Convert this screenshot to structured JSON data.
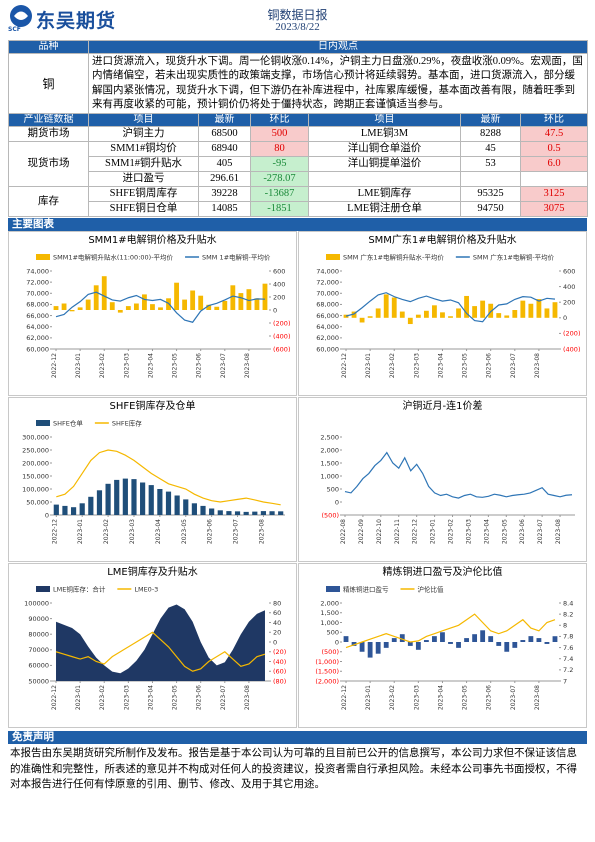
{
  "header": {
    "logo_text": "东吴期货",
    "logo_sub": "SCF",
    "title": "铜数据日报",
    "date": "2023/8/22"
  },
  "view_table": {
    "header": [
      "品种",
      "日内观点"
    ],
    "rows": [
      {
        "name": "铜",
        "text": "进口货源流入，现货升水下调。周一伦铜收涨0.14%，沪铜主力日盘涨0.29%，夜盘收涨0.09%。宏观面，国内情绪偏空，若未出现实质性的政策端支撑，市场信心预计将延续弱势。基本面，进口货源流入，部分缓解国内紧张情况，现货升水下调，但下游仍在补库进程中，社库累库缓慢，基本面改善有限，随着旺季到来有再度收紧的可能，预计铜价仍将处于僵持状态，跨期正套谨慎适当参与。"
      }
    ]
  },
  "data_table": {
    "header": [
      "产业链数据",
      "项目",
      "最新",
      "环比",
      "项目",
      "最新",
      "环比"
    ],
    "groups": [
      {
        "name": "期货市场",
        "rows": [
          [
            "沪铜主力",
            "68500",
            "500",
            "LME铜3M",
            "8288",
            "47.5"
          ]
        ]
      },
      {
        "name": "现货市场",
        "rows": [
          [
            "SMM1#铜均价",
            "68940",
            "80",
            "洋山铜仓单溢价",
            "45",
            "0.5"
          ],
          [
            "SMM1#铜升贴水",
            "405",
            "-95",
            "洋山铜提单溢价",
            "53",
            "6.0"
          ],
          [
            "进口盈亏",
            "296.61",
            "-278.07"
          ]
        ]
      },
      {
        "name": "库存",
        "rows": [
          [
            "SHFE铜周库存",
            "39228",
            "-13687",
            "LME铜库存",
            "95325",
            "3125"
          ],
          [
            "SHFE铜日仓单",
            "14085",
            "-1851",
            "LME铜注册仓单",
            "94750",
            "3075"
          ]
        ]
      }
    ]
  },
  "sections": {
    "charts": "主要图表",
    "disclaimer": "免责声明"
  },
  "disclaimer": "本报告由东吴期货研究所制作及发布。报告是基于本公司认为可靠的且目前已公开的信息撰写，本公司力求但不保证该信息的准确性和完整性，所表述的意见并不构成对任何人的投资建议，投资者需自行承担风险。未经本公司事先书面授权，不得对本报告进行任何有悖原意的引用、删节、修改、及用于其它用途。",
  "chart_data": [
    {
      "type": "combo",
      "title": "SMM1#电解铜价格及升贴水",
      "negative_tick_color": "#ff0000",
      "categories": [
        "2022-12",
        null,
        null,
        "2023-01",
        null,
        null,
        "2023-02",
        null,
        null,
        "2023-03",
        null,
        null,
        "2023-04",
        null,
        null,
        "2023-05",
        null,
        null,
        "2023-06",
        null,
        null,
        "2023-07",
        null,
        null,
        "2023-08",
        null,
        null
      ],
      "series": [
        {
          "name": "SMM1#电解铜升贴水(11:00:00)-平均价",
          "kind": "bar",
          "axis": "y2",
          "color": "#f5b800",
          "values": [
            60,
            100,
            -20,
            40,
            160,
            380,
            520,
            120,
            -40,
            60,
            100,
            240,
            90,
            40,
            180,
            420,
            160,
            300,
            220,
            80,
            50,
            140,
            380,
            260,
            320,
            180,
            405
          ]
        },
        {
          "name": "SMM 1#电解铜-平均价",
          "kind": "line",
          "color": "#2e75b6",
          "values": [
            65800,
            66200,
            67500,
            68500,
            69800,
            70200,
            69500,
            68800,
            68600,
            69200,
            69600,
            68900,
            68700,
            68900,
            68200,
            66500,
            65200,
            64800,
            66800,
            67800,
            68200,
            68800,
            69500,
            69200,
            68700,
            69000,
            68940
          ]
        }
      ],
      "ylim": [
        60000,
        74000
      ],
      "yticks": [
        {
          "value": 60000,
          "label": "60,000"
        },
        {
          "value": 62000,
          "label": "62,000"
        },
        {
          "value": 64000,
          "label": "64,000"
        },
        {
          "value": 66000,
          "label": "66,000"
        },
        {
          "value": 68000,
          "label": "68,000"
        },
        {
          "value": 70000,
          "label": "70,000"
        },
        {
          "value": 72000,
          "label": "72,000"
        },
        {
          "value": 74000,
          "label": "74,000"
        }
      ],
      "y2lim": [
        -600,
        600
      ],
      "y2ticks": [
        {
          "value": -600,
          "label": "(600)"
        },
        {
          "value": -400,
          "label": "(400)"
        },
        {
          "value": -200,
          "label": "(200)"
        },
        0,
        200,
        400,
        600
      ]
    },
    {
      "type": "combo",
      "title": "SMM广东1#电解铜价格及升贴水",
      "negative_tick_color": "#ff0000",
      "categories": [
        "2022-12",
        null,
        null,
        "2023-01",
        null,
        null,
        "2023-02",
        null,
        null,
        "2023-03",
        null,
        null,
        "2023-04",
        null,
        null,
        "2023-05",
        null,
        null,
        "2023-06",
        null,
        null,
        "2023-07",
        null,
        null,
        "2023-08",
        null,
        null
      ],
      "series": [
        {
          "name": "SMM 广东1#电解铜升贴水-平均价",
          "kind": "bar",
          "axis": "y2",
          "color": "#f5b800",
          "values": [
            40,
            80,
            -60,
            20,
            120,
            300,
            260,
            80,
            -80,
            40,
            90,
            160,
            70,
            20,
            120,
            280,
            150,
            220,
            180,
            60,
            30,
            100,
            220,
            180,
            240,
            120,
            200
          ]
        },
        {
          "name": "SMM 广东1#电解铜-平均价",
          "kind": "line",
          "color": "#2e75b6",
          "values": [
            65900,
            66300,
            67400,
            68600,
            69700,
            70100,
            69400,
            68900,
            68500,
            69100,
            69500,
            69000,
            68600,
            68800,
            68300,
            66400,
            65100,
            64900,
            66700,
            67900,
            68100,
            68900,
            69400,
            69300,
            68600,
            69100,
            68950
          ]
        }
      ],
      "ylim": [
        60000,
        74000
      ],
      "yticks": [
        {
          "value": 60000,
          "label": "60,000"
        },
        {
          "value": 62000,
          "label": "62,000"
        },
        {
          "value": 64000,
          "label": "64,000"
        },
        {
          "value": 66000,
          "label": "66,000"
        },
        {
          "value": 68000,
          "label": "68,000"
        },
        {
          "value": 70000,
          "label": "70,000"
        },
        {
          "value": 72000,
          "label": "72,000"
        },
        {
          "value": 74000,
          "label": "74,000"
        }
      ],
      "y2lim": [
        -400,
        600
      ],
      "y2ticks": [
        {
          "value": -400,
          "label": "(400)"
        },
        {
          "value": -200,
          "label": "(200)"
        },
        0,
        200,
        400,
        600
      ]
    },
    {
      "type": "combo",
      "title": "SHFE铜库存及仓单",
      "categories": [
        "2022-12",
        null,
        null,
        "2023-01",
        null,
        null,
        "2023-02",
        null,
        null,
        "2023-03",
        null,
        null,
        "2023-04",
        null,
        null,
        "2023-05",
        null,
        null,
        "2023-06",
        null,
        null,
        "2023-07",
        null,
        null,
        "2023-08",
        null,
        null
      ],
      "series": [
        {
          "name": "SHFE仓单",
          "kind": "bar",
          "color": "#1f4e79",
          "values": [
            40000,
            35000,
            30000,
            45000,
            70000,
            95000,
            120000,
            135000,
            140000,
            138000,
            125000,
            115000,
            100000,
            90000,
            75000,
            60000,
            45000,
            35000,
            25000,
            18000,
            15000,
            14000,
            12000,
            13000,
            15000,
            14500,
            14085
          ]
        },
        {
          "name": "SHFE库存",
          "kind": "line",
          "color": "#f5b800",
          "values": [
            70000,
            80000,
            110000,
            160000,
            210000,
            240000,
            250000,
            245000,
            230000,
            210000,
            185000,
            160000,
            140000,
            120000,
            110000,
            100000,
            80000,
            65000,
            55000,
            50000,
            55000,
            60000,
            65000,
            58000,
            50000,
            45000,
            39228
          ]
        }
      ],
      "ylim": [
        0,
        300000
      ],
      "yticks": [
        0,
        {
          "value": 50000,
          "label": "50,000"
        },
        {
          "value": 100000,
          "label": "100,000"
        },
        {
          "value": 150000,
          "label": "150,000"
        },
        {
          "value": 200000,
          "label": "200,000"
        },
        {
          "value": 250000,
          "label": "250,000"
        },
        {
          "value": 300000,
          "label": "300,000"
        }
      ]
    },
    {
      "type": "line",
      "title": "沪铜近月-连1价差",
      "negative_tick_color": "#ff0000",
      "categories": [
        "2022-08",
        null,
        null,
        "2022-09",
        null,
        null,
        "2022-10",
        null,
        null,
        "2022-11",
        null,
        null,
        "2022-12",
        null,
        null,
        "2023-01",
        null,
        null,
        "2023-02",
        null,
        null,
        "2023-03",
        null,
        null,
        "2023-04",
        null,
        null,
        "2023-05",
        null,
        null,
        "2023-06",
        null,
        null,
        "2023-07",
        null,
        null,
        "2023-08",
        null,
        null
      ],
      "series": [
        {
          "kind": "line",
          "color": "#2e75b6",
          "values": [
            400,
            350,
            600,
            900,
            1100,
            1400,
            1600,
            1900,
            1500,
            1300,
            1700,
            1200,
            1450,
            1100,
            600,
            350,
            250,
            300,
            200,
            150,
            250,
            300,
            200,
            180,
            220,
            300,
            260,
            200,
            250,
            280,
            300,
            350,
            450,
            550,
            300,
            250,
            200,
            260,
            280
          ]
        }
      ],
      "ylim": [
        -500,
        2500
      ],
      "yticks": [
        {
          "value": -500,
          "label": "(500)"
        },
        0,
        500,
        {
          "value": 1000,
          "label": "1,000"
        },
        {
          "value": 1500,
          "label": "1,500"
        },
        {
          "value": 2000,
          "label": "2,000"
        },
        {
          "value": 2500,
          "label": "2,500"
        }
      ]
    },
    {
      "type": "combo",
      "title": "LME铜库存及升贴水",
      "negative_tick_color": "#ff0000",
      "categories": [
        "2022-12",
        null,
        null,
        "2023-01",
        null,
        null,
        "2023-02",
        null,
        null,
        "2023-03",
        null,
        null,
        "2023-04",
        null,
        null,
        "2023-05",
        null,
        null,
        "2023-06",
        null,
        null,
        "2023-07",
        null,
        null,
        "2023-08",
        null,
        null
      ],
      "series": [
        {
          "name": "LME铜库存：合计",
          "kind": "area",
          "color": "#1f3864",
          "values": [
            88000,
            86000,
            84000,
            80000,
            72000,
            65000,
            60000,
            56000,
            55000,
            58000,
            63000,
            70000,
            80000,
            90000,
            97000,
            99000,
            96000,
            88000,
            75000,
            65000,
            60000,
            62000,
            70000,
            80000,
            88000,
            93000,
            95325
          ]
        },
        {
          "name": "LME0-3",
          "kind": "line",
          "axis": "y2",
          "color": "#f5b800",
          "values": [
            -20,
            -25,
            -30,
            -35,
            -30,
            -40,
            -45,
            -30,
            -20,
            -10,
            0,
            10,
            20,
            5,
            -10,
            -30,
            -50,
            -60,
            -55,
            -40,
            -30,
            -20,
            -35,
            -50,
            -45,
            -30,
            -25
          ]
        }
      ],
      "ylim": [
        50000,
        100000
      ],
      "yticks": [
        50000,
        60000,
        70000,
        80000,
        90000,
        100000
      ],
      "y2lim": [
        -80,
        80
      ],
      "y2ticks": [
        {
          "value": -80,
          "label": "(80)"
        },
        {
          "value": -60,
          "label": "(60)"
        },
        {
          "value": -40,
          "label": "(40)"
        },
        {
          "value": -20,
          "label": "(20)"
        },
        0,
        20,
        40,
        60,
        80
      ]
    },
    {
      "type": "combo",
      "title": "精炼铜进口盈亏及沪伦比值",
      "negative_tick_color": "#ff0000",
      "categories": [
        "2022-12",
        null,
        null,
        "2023-01",
        null,
        null,
        "2023-02",
        null,
        null,
        "2023-03",
        null,
        null,
        "2023-04",
        null,
        null,
        "2023-05",
        null,
        null,
        "2023-06",
        null,
        null,
        "2023-07",
        null,
        null,
        "2023-08",
        null,
        null
      ],
      "series": [
        {
          "name": "精炼铜进口盈亏",
          "kind": "bar",
          "color": "#2e5597",
          "values": [
            300,
            -200,
            -500,
            -800,
            -600,
            -300,
            200,
            400,
            -200,
            -400,
            100,
            300,
            500,
            -100,
            -300,
            200,
            400,
            600,
            300,
            -200,
            -500,
            -300,
            100,
            300,
            200,
            -100,
            296.61
          ]
        },
        {
          "name": "沪伦比值",
          "kind": "line",
          "axis": "y2",
          "color": "#f5b800",
          "values": [
            7.6,
            7.65,
            7.7,
            7.75,
            7.8,
            7.85,
            7.8,
            7.75,
            7.7,
            7.72,
            7.8,
            7.85,
            7.9,
            7.95,
            8.0,
            8.1,
            8.2,
            8.05,
            7.9,
            7.85,
            7.9,
            8.0,
            8.1,
            7.95,
            7.9,
            8.05,
            8.1
          ]
        }
      ],
      "ylim": [
        -2000,
        2000
      ],
      "yticks": [
        {
          "value": -2000,
          "label": "(2,000)"
        },
        {
          "value": -1500,
          "label": "(1,500)"
        },
        {
          "value": -1000,
          "label": "(1,000)"
        },
        {
          "value": -500,
          "label": "(500)"
        },
        0,
        500,
        {
          "value": 1000,
          "label": "1,000"
        },
        {
          "value": 1500,
          "label": "1,500"
        },
        {
          "value": 2000,
          "label": "2,000"
        }
      ],
      "y2lim": [
        7,
        8.4
      ],
      "y2ticks": [
        7,
        7.2,
        7.4,
        7.6,
        7.8,
        8,
        8.2,
        8.4
      ]
    }
  ]
}
